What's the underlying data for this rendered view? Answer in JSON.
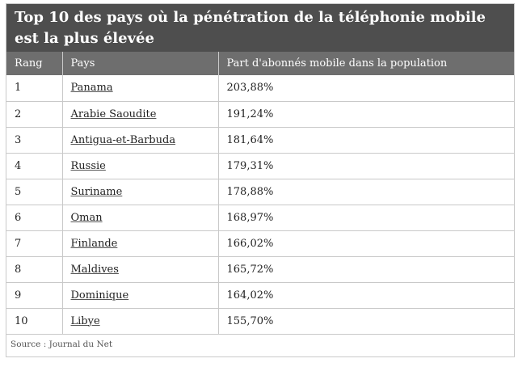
{
  "title": "Top 10 des pays où la pénétration de la téléphonie mobile est la plus élevée",
  "headers": {
    "rank": "Rang",
    "country": "Pays",
    "share": "Part d'abonnés mobile dans la population"
  },
  "rows": [
    {
      "rank": "1",
      "country": "Panama",
      "share": "203,88%"
    },
    {
      "rank": "2",
      "country": "Arabie Saoudite",
      "share": "191,24%"
    },
    {
      "rank": "3",
      "country": "Antigua-et-Barbuda",
      "share": "181,64%"
    },
    {
      "rank": "4",
      "country": "Russie",
      "share": "179,31%"
    },
    {
      "rank": "5",
      "country": "Suriname",
      "share": "178,88%"
    },
    {
      "rank": "6",
      "country": "Oman",
      "share": "168,97%"
    },
    {
      "rank": "7",
      "country": "Finlande",
      "share": "166,02%"
    },
    {
      "rank": "8",
      "country": "Maldives",
      "share": "165,72%"
    },
    {
      "rank": "9",
      "country": "Dominique",
      "share": "164,02%"
    },
    {
      "rank": "10",
      "country": "Libye",
      "share": "155,70%"
    }
  ],
  "source": "Source : Journal du Net"
}
